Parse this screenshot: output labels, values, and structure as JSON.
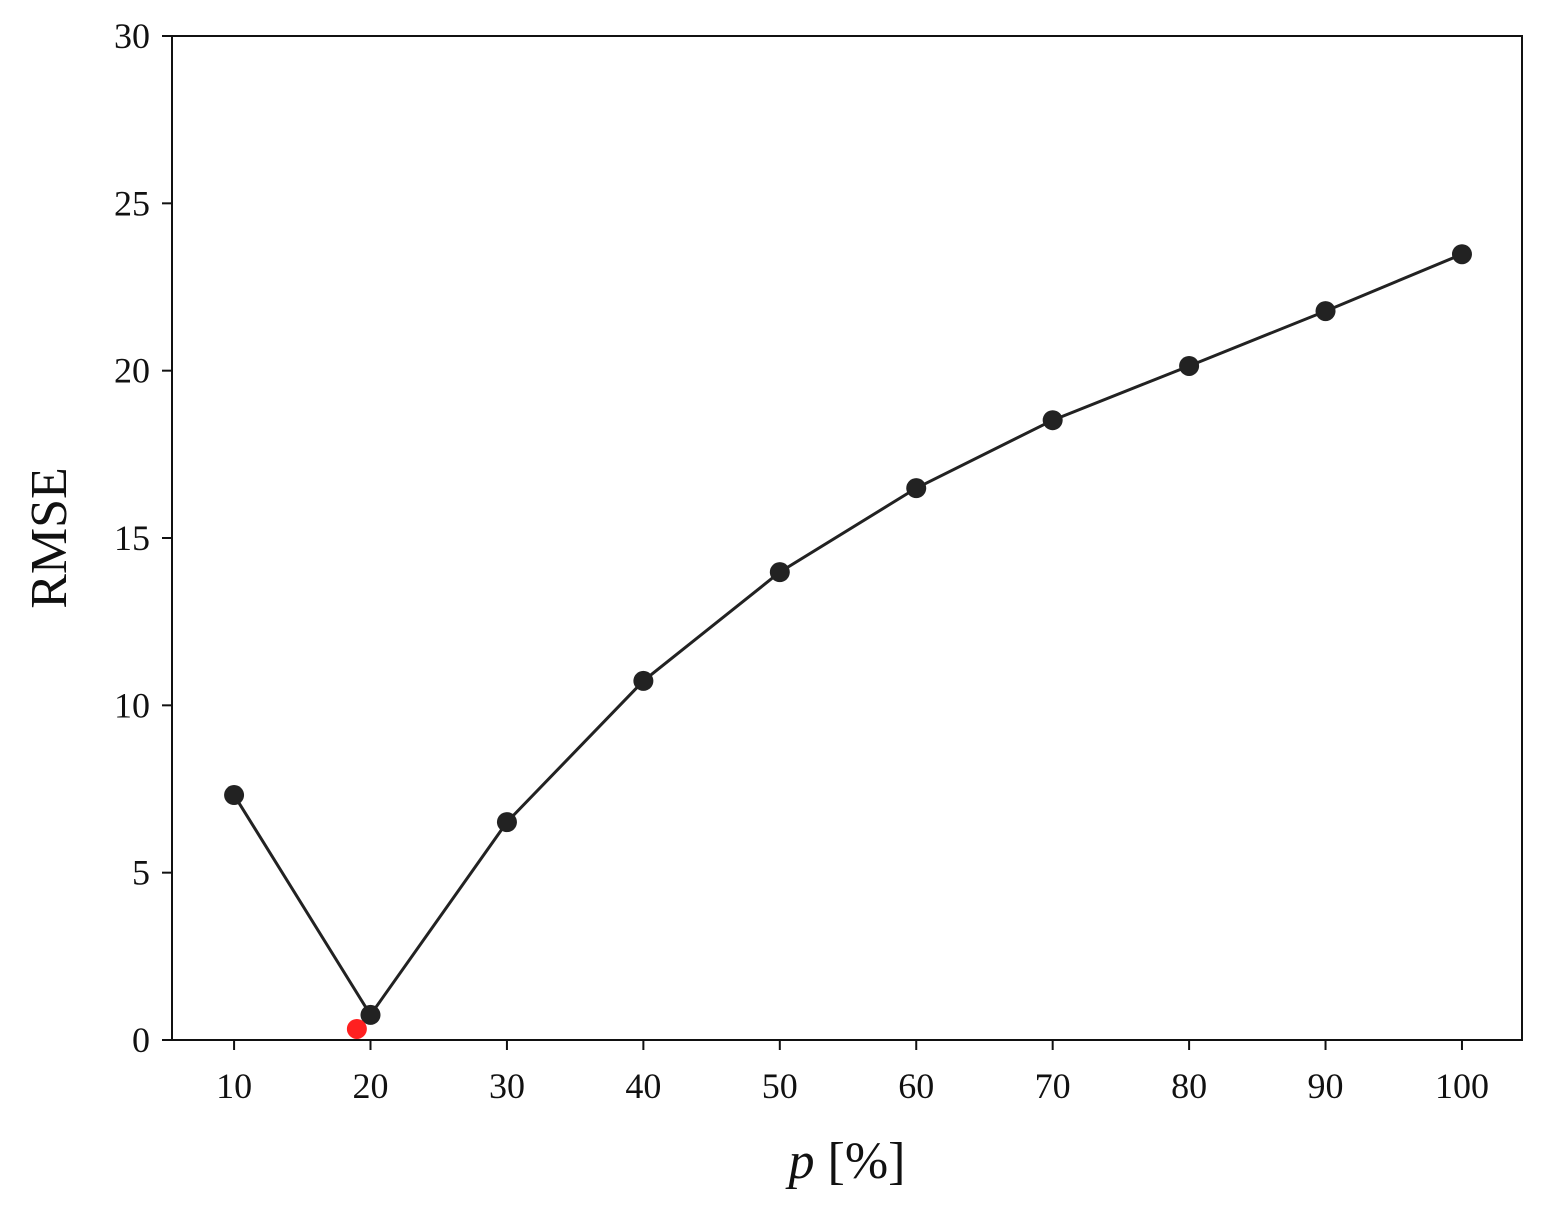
{
  "chart_data": {
    "type": "line",
    "x_label": "p [%]",
    "y_label": "RMSE",
    "xlim": [
      5.45,
      104.4
    ],
    "ylim": [
      0,
      30
    ],
    "xticks": [
      10,
      20,
      30,
      40,
      50,
      60,
      70,
      80,
      90,
      100
    ],
    "yticks": [
      0,
      5,
      10,
      15,
      20,
      25,
      30
    ],
    "grid": false,
    "series": [
      {
        "color": "#222222",
        "markers": true,
        "line": true,
        "x": [
          10,
          20,
          30,
          40,
          50,
          60,
          70,
          80,
          90,
          100
        ],
        "values": [
          7.32,
          0.75,
          6.51,
          10.73,
          13.98,
          16.49,
          18.52,
          20.14,
          21.78,
          23.48
        ]
      },
      {
        "color": "#ff2020",
        "markers": true,
        "line": false,
        "x": [
          19
        ],
        "values": [
          0.33
        ]
      }
    ]
  }
}
